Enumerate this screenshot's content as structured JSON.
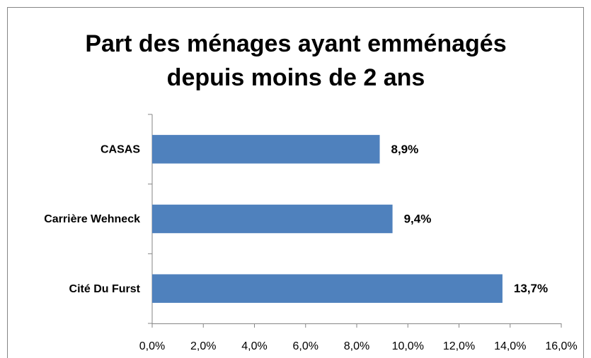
{
  "chart_data": {
    "type": "barh",
    "title": [
      "Part des ménages ayant emménagés",
      "depuis moins de 2 ans"
    ],
    "categories": [
      "CASAS",
      "Carrière Wehneck",
      "Cité Du Furst"
    ],
    "values": [
      8.9,
      9.4,
      13.7
    ],
    "value_labels": [
      "8,9%",
      "9,4%",
      "13,7%"
    ],
    "color": "#4f81bd",
    "xlim": [
      0,
      16
    ],
    "xticks": [
      {
        "value": 0,
        "label": "0,0%"
      },
      {
        "value": 2,
        "label": "2,0%"
      },
      {
        "value": 4,
        "label": "4,0%"
      },
      {
        "value": 6,
        "label": "6,0%"
      },
      {
        "value": 8,
        "label": "8,0%"
      },
      {
        "value": 10,
        "label": "10,0%"
      },
      {
        "value": 12,
        "label": "12,0%"
      },
      {
        "value": 14,
        "label": "14,0%"
      },
      {
        "value": 16,
        "label": "16,0%"
      }
    ],
    "grid": false
  }
}
